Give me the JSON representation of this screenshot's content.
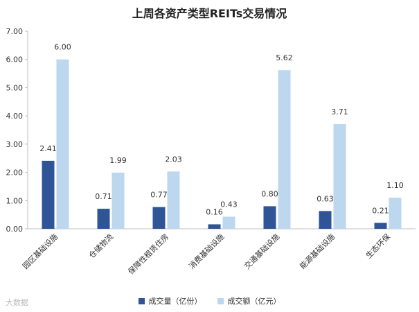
{
  "chart_data": {
    "type": "bar",
    "title": "上周各资产类型REITs交易情况",
    "categories": [
      "园区基础设施",
      "仓储物流",
      "保障性租赁住房",
      "消费基础设施",
      "交通基础设施",
      "能源基础设施",
      "生态环保"
    ],
    "series": [
      {
        "name": "成交量（亿份）",
        "values": [
          2.41,
          0.71,
          0.77,
          0.16,
          0.8,
          0.63,
          0.21
        ],
        "labels": [
          "2.41",
          "0.71",
          "0.77",
          "0.16",
          "0.80",
          "0.63",
          "0.21"
        ],
        "color": "#2F5597"
      },
      {
        "name": "成交额（亿元）",
        "values": [
          6.0,
          1.99,
          2.03,
          0.43,
          5.62,
          3.71,
          1.1
        ],
        "labels": [
          "6.00",
          "1.99",
          "2.03",
          "0.43",
          "5.62",
          "3.71",
          "1.10"
        ],
        "color": "#BDD7EE"
      }
    ],
    "ylim": [
      0,
      7
    ],
    "yticks": [
      "0.00",
      "1.00",
      "2.00",
      "3.00",
      "4.00",
      "5.00",
      "6.00",
      "7.00"
    ],
    "grid": false,
    "legend_position": "bottom"
  },
  "watermark": "大数据"
}
